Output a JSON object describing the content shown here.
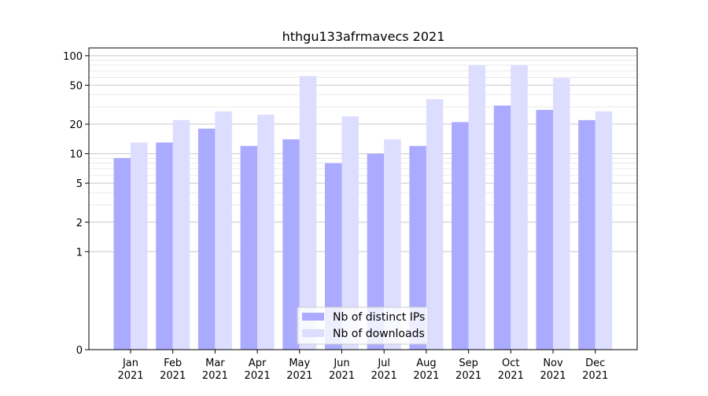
{
  "chart_data": {
    "type": "bar",
    "title": "hthgu133afrmavecs 2021",
    "xlabel": "",
    "ylabel": "",
    "yscale": "symlog",
    "ylim": [
      0,
      120
    ],
    "yticks": [
      0,
      1,
      2,
      5,
      10,
      20,
      50,
      100
    ],
    "ytick_labels": [
      "0",
      "1",
      "2",
      "5",
      "10",
      "20",
      "50",
      "100"
    ],
    "categories": [
      "Jan\n2021",
      "Feb\n2021",
      "Mar\n2021",
      "Apr\n2021",
      "May\n2021",
      "Jun\n2021",
      "Jul\n2021",
      "Aug\n2021",
      "Sep\n2021",
      "Oct\n2021",
      "Nov\n2021",
      "Dec\n2021"
    ],
    "series": [
      {
        "name": "Nb of distinct IPs",
        "color": "#aaaaff",
        "values": [
          9,
          13,
          18,
          12,
          14,
          8,
          10,
          12,
          21,
          31,
          28,
          22
        ]
      },
      {
        "name": "Nb of downloads",
        "color": "#ddddff",
        "values": [
          13,
          22,
          27,
          25,
          62,
          24,
          14,
          36,
          80,
          80,
          59,
          27
        ]
      }
    ],
    "legend_position": "bottom-center",
    "grid": true
  }
}
